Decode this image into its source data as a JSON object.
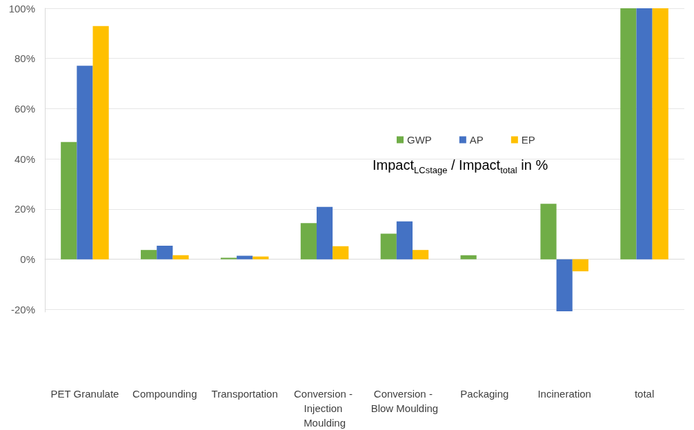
{
  "chart_data": {
    "type": "bar",
    "categories": [
      "PET Granulate",
      "Compounding",
      "Transportation",
      "Conversion - Injection Moulding",
      "Conversion - Blow Moulding",
      "Packaging",
      "Incineration",
      "total"
    ],
    "series": [
      {
        "name": "GWP",
        "color": "#70ad47",
        "values": [
          46.7,
          3.7,
          0.6,
          14.4,
          10.2,
          1.6,
          22.1,
          100
        ]
      },
      {
        "name": "AP",
        "color": "#4472c4",
        "values": [
          77.1,
          5.4,
          1.4,
          20.9,
          15.1,
          0,
          -20.7,
          100
        ]
      },
      {
        "name": "EP",
        "color": "#ffc000",
        "values": [
          92.9,
          1.6,
          1.1,
          5.2,
          3.7,
          0,
          -4.8,
          100
        ]
      }
    ],
    "ylim": [
      -21,
      100
    ],
    "yticks": [
      {
        "value": -20,
        "label": "-20%"
      },
      {
        "value": 0,
        "label": "0%"
      },
      {
        "value": 20,
        "label": "20%"
      },
      {
        "value": 40,
        "label": "40%"
      },
      {
        "value": 60,
        "label": "60%"
      },
      {
        "value": 80,
        "label": "80%"
      },
      {
        "value": 100,
        "label": "100%"
      }
    ],
    "annotations": [
      "Impact$_{LCstage}$ / Impact$_{total}$ in %"
    ],
    "grid": "y",
    "legend": "top"
  }
}
